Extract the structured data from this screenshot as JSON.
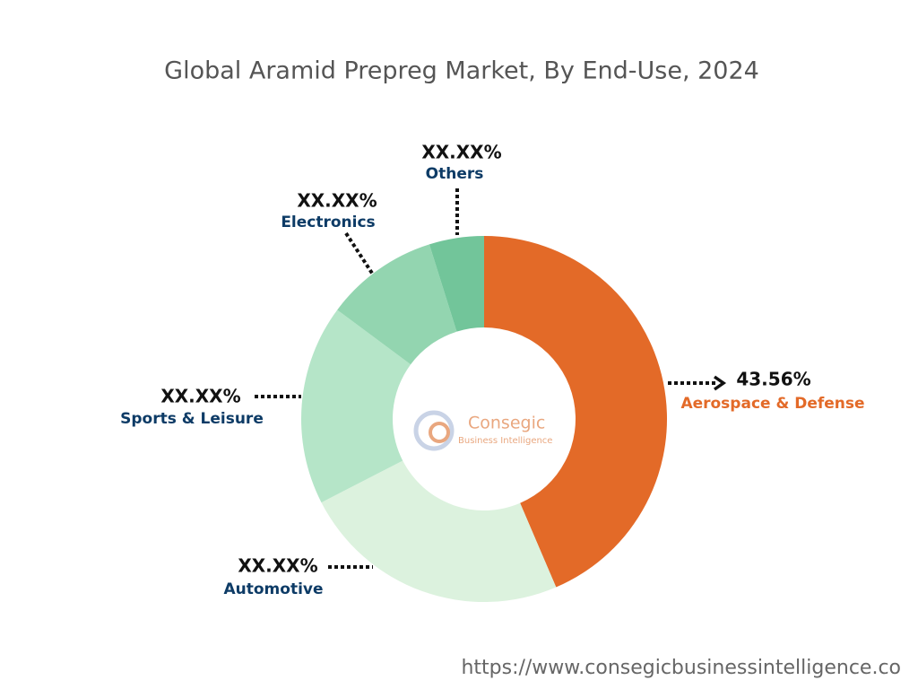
{
  "chart_data": {
    "type": "pie",
    "title": "Global Aramid Prepreg Market, By End-Use, 2024",
    "categories": [
      "Aerospace & Defense",
      "Automotive",
      "Sports & Leisure",
      "Electronics",
      "Others"
    ],
    "values": [
      43.56,
      23.9,
      17.7,
      10.0,
      4.84
    ],
    "value_labels": [
      "43.56%",
      "XX.XX%",
      "XX.XX%",
      "XX.XX%",
      "XX.XX%"
    ],
    "colors": [
      "#e36a28",
      "#dcf2de",
      "#b5e5c8",
      "#93d5b0",
      "#72c59a"
    ]
  },
  "logo": {
    "name": "Consegic",
    "tagline": "Business Intelligence"
  },
  "footer": "https://www.consegicbusinessintelligence.co"
}
